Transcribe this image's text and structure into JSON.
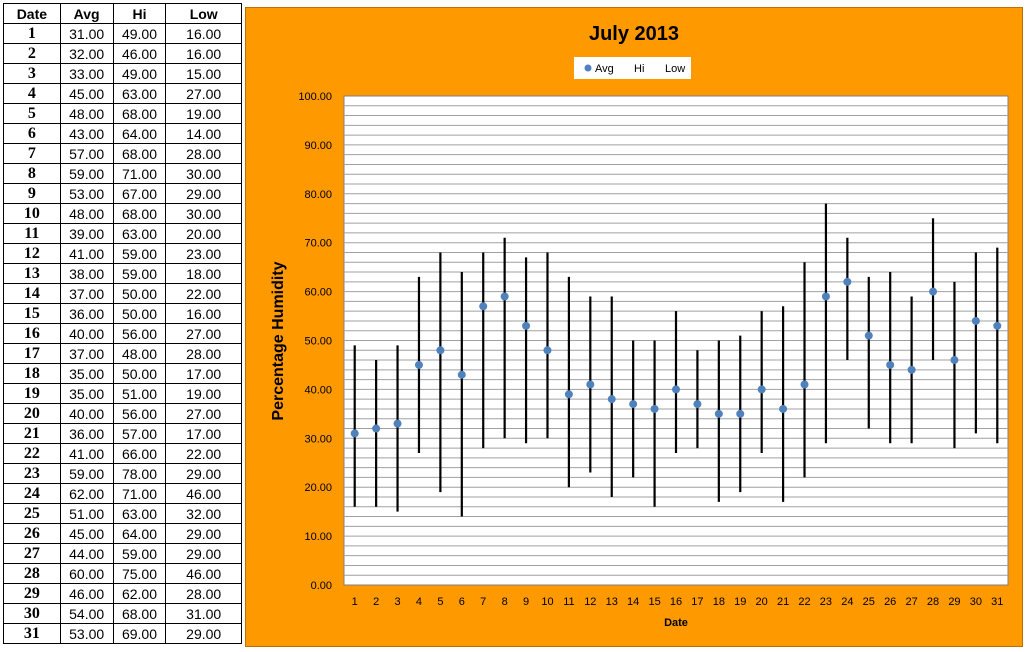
{
  "table": {
    "headers": [
      "Date",
      "Avg",
      "Hi",
      "Low"
    ],
    "rows": [
      [
        "1",
        "31.00",
        "49.00",
        "16.00"
      ],
      [
        "2",
        "32.00",
        "46.00",
        "16.00"
      ],
      [
        "3",
        "33.00",
        "49.00",
        "15.00"
      ],
      [
        "4",
        "45.00",
        "63.00",
        "27.00"
      ],
      [
        "5",
        "48.00",
        "68.00",
        "19.00"
      ],
      [
        "6",
        "43.00",
        "64.00",
        "14.00"
      ],
      [
        "7",
        "57.00",
        "68.00",
        "28.00"
      ],
      [
        "8",
        "59.00",
        "71.00",
        "30.00"
      ],
      [
        "9",
        "53.00",
        "67.00",
        "29.00"
      ],
      [
        "10",
        "48.00",
        "68.00",
        "30.00"
      ],
      [
        "11",
        "39.00",
        "63.00",
        "20.00"
      ],
      [
        "12",
        "41.00",
        "59.00",
        "23.00"
      ],
      [
        "13",
        "38.00",
        "59.00",
        "18.00"
      ],
      [
        "14",
        "37.00",
        "50.00",
        "22.00"
      ],
      [
        "15",
        "36.00",
        "50.00",
        "16.00"
      ],
      [
        "16",
        "40.00",
        "56.00",
        "27.00"
      ],
      [
        "17",
        "37.00",
        "48.00",
        "28.00"
      ],
      [
        "18",
        "35.00",
        "50.00",
        "17.00"
      ],
      [
        "19",
        "35.00",
        "51.00",
        "19.00"
      ],
      [
        "20",
        "40.00",
        "56.00",
        "27.00"
      ],
      [
        "21",
        "36.00",
        "57.00",
        "17.00"
      ],
      [
        "22",
        "41.00",
        "66.00",
        "22.00"
      ],
      [
        "23",
        "59.00",
        "78.00",
        "29.00"
      ],
      [
        "24",
        "62.00",
        "71.00",
        "46.00"
      ],
      [
        "25",
        "51.00",
        "63.00",
        "32.00"
      ],
      [
        "26",
        "45.00",
        "64.00",
        "29.00"
      ],
      [
        "27",
        "44.00",
        "59.00",
        "29.00"
      ],
      [
        "28",
        "60.00",
        "75.00",
        "46.00"
      ],
      [
        "29",
        "46.00",
        "62.00",
        "28.00"
      ],
      [
        "30",
        "54.00",
        "68.00",
        "31.00"
      ],
      [
        "31",
        "53.00",
        "69.00",
        "29.00"
      ]
    ]
  },
  "chart_data": {
    "type": "scatter",
    "title": "July 2013",
    "xlabel": "Date",
    "ylabel": "Percentage Humidity",
    "ylim": [
      0,
      100
    ],
    "y_ticks": [
      "0.00",
      "10.00",
      "20.00",
      "30.00",
      "40.00",
      "50.00",
      "60.00",
      "70.00",
      "80.00",
      "90.00",
      "100.00"
    ],
    "x": [
      1,
      2,
      3,
      4,
      5,
      6,
      7,
      8,
      9,
      10,
      11,
      12,
      13,
      14,
      15,
      16,
      17,
      18,
      19,
      20,
      21,
      22,
      23,
      24,
      25,
      26,
      27,
      28,
      29,
      30,
      31
    ],
    "series": [
      {
        "name": "Avg",
        "values": [
          31,
          32,
          33,
          45,
          48,
          43,
          57,
          59,
          53,
          48,
          39,
          41,
          38,
          37,
          36,
          40,
          37,
          35,
          35,
          40,
          36,
          41,
          59,
          62,
          51,
          45,
          44,
          60,
          46,
          54,
          53
        ]
      },
      {
        "name": "Hi",
        "values": [
          49,
          46,
          49,
          63,
          68,
          64,
          68,
          71,
          67,
          68,
          63,
          59,
          59,
          50,
          50,
          56,
          48,
          50,
          51,
          56,
          57,
          66,
          78,
          71,
          63,
          64,
          59,
          75,
          62,
          68,
          69
        ]
      },
      {
        "name": "Low",
        "values": [
          16,
          16,
          15,
          27,
          19,
          14,
          28,
          30,
          29,
          30,
          20,
          23,
          18,
          22,
          16,
          27,
          28,
          17,
          19,
          27,
          17,
          22,
          29,
          46,
          32,
          29,
          29,
          46,
          28,
          31,
          29
        ]
      }
    ],
    "legend": "top",
    "grid": true,
    "colors": {
      "avg_marker": "#4f81bd",
      "range_line": "#000000",
      "chart_bg": "#ff9900",
      "plot_bg": "#ffffff",
      "gridline": "#a0a0a0"
    }
  }
}
